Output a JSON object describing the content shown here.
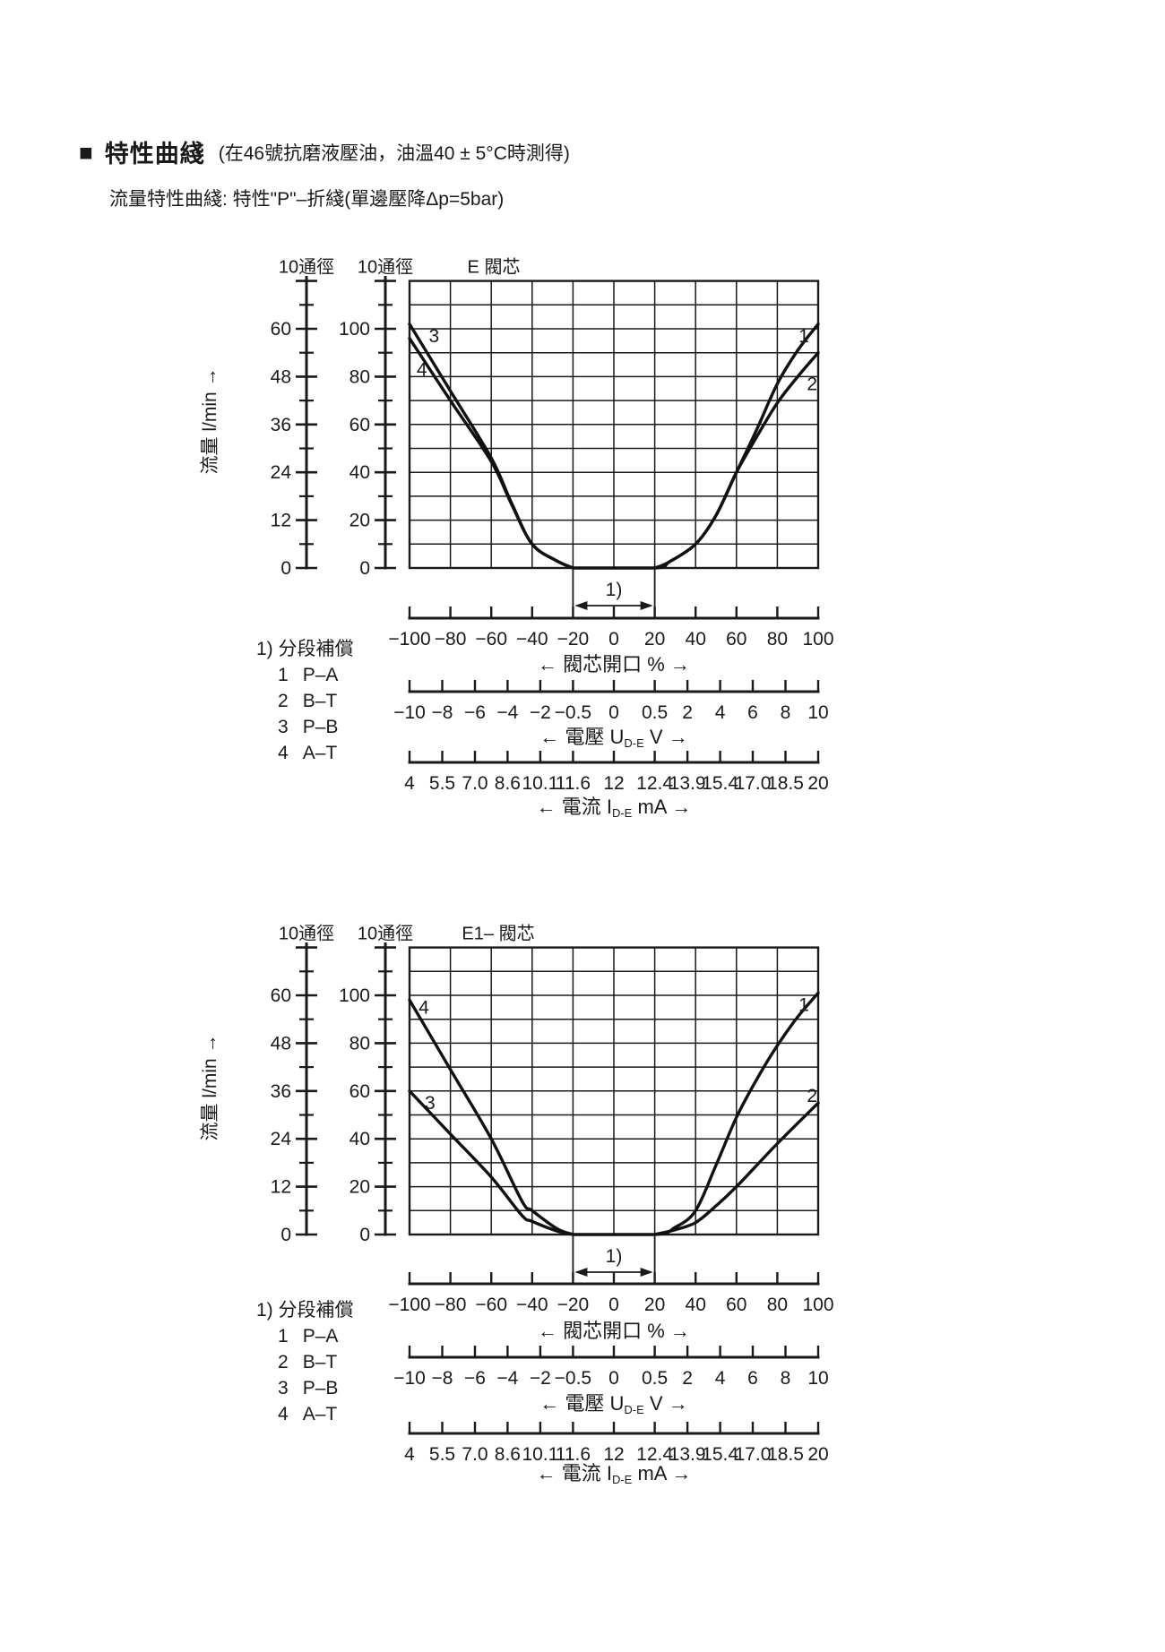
{
  "page": {
    "bullet": "■",
    "title": "特性曲綫",
    "title_note": "(在46號抗磨液壓油，油溫40 ± 5°C時測得)",
    "subtitle": "流量特性曲綫: 特性\"P\"–折綫(單邊壓降Δp=5bar)"
  },
  "chart_data": [
    {
      "type": "line",
      "title": "E 閥芯",
      "scale_headers": [
        "10通徑",
        "10通徑"
      ],
      "ylabel": "流量 l/min →",
      "x_range": [
        -100,
        100
      ],
      "ylim_pct": [
        0,
        120
      ],
      "grid": {
        "columns": 10,
        "rows": 12,
        "x_step_pct": 20,
        "y_step_pct": 10
      },
      "scales": [
        {
          "name": "流量 l/min",
          "labels": [
            0,
            12,
            24,
            36,
            48,
            60
          ]
        },
        {
          "name": "流量 %",
          "labels": [
            0,
            20,
            40,
            60,
            80,
            100
          ]
        }
      ],
      "series": [
        {
          "name": "1",
          "port": "P–A",
          "points": [
            [
              -20,
              0
            ],
            [
              20,
              0
            ],
            [
              27,
              2.5
            ],
            [
              40,
              10
            ],
            [
              50,
              22
            ],
            [
              60,
              40
            ],
            [
              70,
              58
            ],
            [
              80,
              77
            ],
            [
              90,
              91
            ],
            [
              100,
              102
            ]
          ],
          "label_pos": [
            93,
            97
          ]
        },
        {
          "name": "2",
          "port": "B–T",
          "points": [
            [
              20,
              0
            ],
            [
              27,
              2.5
            ],
            [
              40,
              10
            ],
            [
              50,
              22
            ],
            [
              60,
              40
            ],
            [
              70,
              55
            ],
            [
              80,
              69
            ],
            [
              90,
              80
            ],
            [
              100,
              90
            ]
          ],
          "label_pos": [
            97,
            77
          ]
        },
        {
          "name": "3",
          "port": "P–B",
          "points": [
            [
              -100,
              102
            ],
            [
              -80,
              74
            ],
            [
              -60,
              46
            ],
            [
              -50,
              27
            ],
            [
              -40,
              10
            ],
            [
              -28,
              3
            ],
            [
              -20,
              0
            ]
          ],
          "label_pos": [
            -88,
            97
          ]
        },
        {
          "name": "4",
          "port": "A–T",
          "points": [
            [
              -100,
              96
            ],
            [
              -80,
              70
            ],
            [
              -60,
              44.5
            ],
            [
              -50,
              26.5
            ],
            [
              -40,
              10
            ],
            [
              -28,
              3
            ],
            [
              -20,
              0
            ]
          ],
          "label_pos": [
            -94,
            83
          ]
        }
      ],
      "annotation": {
        "text": "1)",
        "x_from": -20,
        "x_to": 20
      },
      "legend": {
        "title": "1) 分段補償",
        "items": [
          {
            "num": "1",
            "label": "P–A"
          },
          {
            "num": "2",
            "label": "B–T"
          },
          {
            "num": "3",
            "label": "P–B"
          },
          {
            "num": "4",
            "label": "A–T"
          }
        ]
      },
      "x_axes": [
        {
          "pre": "← 閥芯開口 % →",
          "sub": "",
          "post": "",
          "ticks": [
            "−100",
            "−80",
            "−60",
            "−40",
            "−20",
            "0",
            "20",
            "40",
            "60",
            "80",
            "100"
          ],
          "pos": [
            0,
            10,
            20,
            30,
            40,
            50,
            60,
            70,
            80,
            90,
            100
          ]
        },
        {
          "pre": "← 電壓 U",
          "sub": "D-E",
          "post": " V →",
          "ticks": [
            "−10",
            "−8",
            "−6",
            "−4",
            "−2",
            "−0.5",
            "0",
            "0.5",
            "2",
            "4",
            "6",
            "8",
            "10"
          ],
          "pos": [
            0,
            8,
            16,
            24,
            32,
            40,
            50,
            60,
            68,
            76,
            84,
            92,
            100
          ]
        },
        {
          "pre": "← 電流 I",
          "sub": "D-E",
          "post": " mA →",
          "ticks": [
            "4",
            "5.5",
            "7.0",
            "8.6",
            "10.1",
            "11.6",
            "12",
            "12.4",
            "13.9",
            "15.4",
            "17.0",
            "18.5",
            "20"
          ],
          "pos": [
            0,
            8,
            16,
            24,
            32,
            40,
            50,
            60,
            68,
            76,
            84,
            92,
            100
          ]
        }
      ]
    },
    {
      "type": "line",
      "title": "E1– 閥芯",
      "scale_headers": [
        "10通徑",
        "10通徑"
      ],
      "ylabel": "流量 l/min →",
      "x_range": [
        -100,
        100
      ],
      "ylim_pct": [
        0,
        120
      ],
      "grid": {
        "columns": 10,
        "rows": 12,
        "x_step_pct": 20,
        "y_step_pct": 10
      },
      "scales": [
        {
          "name": "流量 l/min",
          "labels": [
            0,
            12,
            24,
            36,
            48,
            60
          ]
        },
        {
          "name": "流量 %",
          "labels": [
            0,
            20,
            40,
            60,
            80,
            100
          ]
        }
      ],
      "series": [
        {
          "name": "1",
          "port": "P–A",
          "points": [
            [
              -20,
              0
            ],
            [
              20,
              0
            ],
            [
              30,
              3
            ],
            [
              40,
              10
            ],
            [
              50,
              29
            ],
            [
              60,
              49
            ],
            [
              70,
              65
            ],
            [
              80,
              79
            ],
            [
              90,
              91
            ],
            [
              100,
              101
            ]
          ],
          "label_pos": [
            93,
            96
          ]
        },
        {
          "name": "2",
          "port": "B–T",
          "points": [
            [
              20,
              0
            ],
            [
              30,
              2
            ],
            [
              40,
              5
            ],
            [
              50,
              12
            ],
            [
              60,
              20
            ],
            [
              80,
              38
            ],
            [
              100,
              55
            ]
          ],
          "label_pos": [
            97,
            58
          ]
        },
        {
          "name": "3",
          "port": "P–B",
          "points": [
            [
              -100,
              60
            ],
            [
              -80,
              42
            ],
            [
              -60,
              24
            ],
            [
              -45,
              8
            ],
            [
              -40,
              5.5
            ],
            [
              -28,
              1.5
            ],
            [
              -20,
              0
            ]
          ],
          "label_pos": [
            -90,
            55
          ]
        },
        {
          "name": "4",
          "port": "A–T",
          "points": [
            [
              -100,
              98
            ],
            [
              -80,
              69
            ],
            [
              -60,
              40
            ],
            [
              -45,
              14
            ],
            [
              -40,
              10
            ],
            [
              -28,
              2.5
            ],
            [
              -20,
              0
            ]
          ],
          "label_pos": [
            -93,
            95
          ]
        }
      ],
      "annotation": {
        "text": "1)",
        "x_from": -20,
        "x_to": 20
      },
      "legend": {
        "title": "1) 分段補償",
        "items": [
          {
            "num": "1",
            "label": "P–A"
          },
          {
            "num": "2",
            "label": "B–T"
          },
          {
            "num": "3",
            "label": "P–B"
          },
          {
            "num": "4",
            "label": "A–T"
          }
        ]
      },
      "x_axes": [
        {
          "pre": "← 閥芯開口 % →",
          "sub": "",
          "post": "",
          "ticks": [
            "−100",
            "−80",
            "−60",
            "−40",
            "−20",
            "0",
            "20",
            "40",
            "60",
            "80",
            "100"
          ],
          "pos": [
            0,
            10,
            20,
            30,
            40,
            50,
            60,
            70,
            80,
            90,
            100
          ]
        },
        {
          "pre": "← 電壓 U",
          "sub": "D-E",
          "post": " V →",
          "ticks": [
            "−10",
            "−8",
            "−6",
            "−4",
            "−2",
            "−0.5",
            "0",
            "0.5",
            "2",
            "4",
            "6",
            "8",
            "10"
          ],
          "pos": [
            0,
            8,
            16,
            24,
            32,
            40,
            50,
            60,
            68,
            76,
            84,
            92,
            100
          ]
        },
        {
          "pre": "← 電流 I",
          "sub": "D-E",
          "post": " mA →",
          "ticks": [
            "4",
            "5.5",
            "7.0",
            "8.6",
            "10.1",
            "11.6",
            "12",
            "12.4",
            "13.9",
            "15.4",
            "17.0",
            "18.5",
            "20"
          ],
          "pos": [
            0,
            8,
            16,
            24,
            32,
            40,
            50,
            60,
            68,
            76,
            84,
            92,
            100
          ]
        }
      ]
    }
  ]
}
